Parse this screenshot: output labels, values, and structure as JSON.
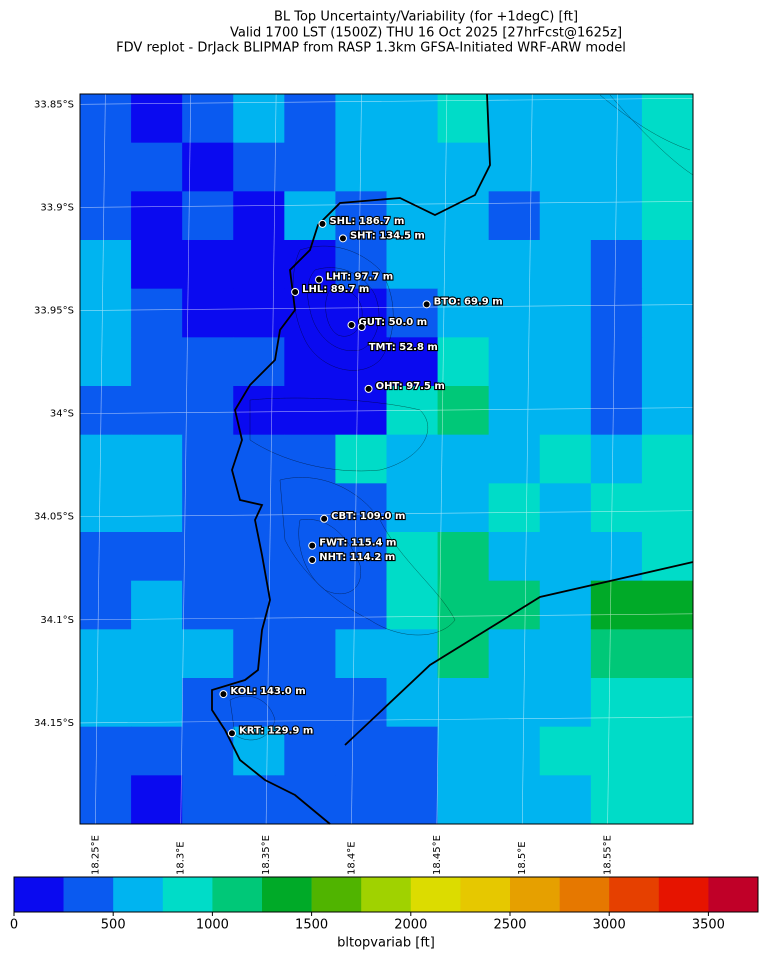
{
  "chart_data": {
    "type": "map",
    "title_lines": [
      "BL Top Uncertainty/Variability (for +1degC) [ft]",
      "Valid 1700 LST (1500Z) THU 16 Oct 2025 [27hrFcst@1625z]",
      "FDV replot - DrJack BLIPMAP from RASP 1.3km GFSA-Initiated WRF-ARW model"
    ],
    "xlim": [
      18.241,
      18.6
    ],
    "ylim": [
      -34.199,
      -33.845
    ],
    "xticks": [
      {
        "value": 18.25,
        "label": "18.25°E"
      },
      {
        "value": 18.3,
        "label": "18.3°E"
      },
      {
        "value": 18.35,
        "label": "18.35°E"
      },
      {
        "value": 18.4,
        "label": "18.4°E"
      },
      {
        "value": 18.45,
        "label": "18.45°E"
      },
      {
        "value": 18.5,
        "label": "18.5°E"
      },
      {
        "value": 18.55,
        "label": "18.55°E"
      }
    ],
    "yticks": [
      {
        "value": -33.85,
        "label": "33.85°S"
      },
      {
        "value": -33.9,
        "label": "33.9°S"
      },
      {
        "value": -33.95,
        "label": "33.95°S"
      },
      {
        "value": -34.0,
        "label": "34°S"
      },
      {
        "value": -34.05,
        "label": "34.05°S"
      },
      {
        "value": -34.1,
        "label": "34.1°S"
      },
      {
        "value": -34.15,
        "label": "34.15°S"
      }
    ],
    "grid_values": [
      [
        400,
        100,
        400,
        600,
        400,
        600,
        600,
        900,
        600,
        600,
        600,
        900
      ],
      [
        400,
        400,
        100,
        400,
        400,
        600,
        600,
        600,
        600,
        600,
        600,
        900
      ],
      [
        400,
        100,
        400,
        100,
        600,
        400,
        600,
        600,
        400,
        600,
        600,
        900
      ],
      [
        600,
        100,
        100,
        100,
        100,
        400,
        600,
        600,
        600,
        600,
        400,
        600
      ],
      [
        600,
        400,
        100,
        100,
        100,
        100,
        400,
        600,
        600,
        600,
        400,
        600
      ],
      [
        600,
        400,
        400,
        400,
        100,
        100,
        100,
        900,
        600,
        600,
        400,
        600
      ],
      [
        400,
        400,
        400,
        100,
        100,
        100,
        900,
        1100,
        600,
        600,
        400,
        600
      ],
      [
        600,
        600,
        400,
        400,
        400,
        900,
        600,
        600,
        600,
        900,
        600,
        900
      ],
      [
        600,
        600,
        400,
        400,
        400,
        400,
        600,
        600,
        900,
        600,
        900,
        900
      ],
      [
        400,
        400,
        400,
        400,
        400,
        400,
        900,
        1100,
        600,
        600,
        600,
        900
      ],
      [
        400,
        600,
        400,
        400,
        400,
        400,
        900,
        1100,
        1100,
        600,
        1300,
        1300
      ],
      [
        600,
        600,
        600,
        400,
        400,
        600,
        600,
        1100,
        600,
        600,
        1100,
        1100
      ],
      [
        600,
        600,
        400,
        400,
        400,
        400,
        600,
        600,
        600,
        600,
        900,
        900
      ],
      [
        400,
        400,
        400,
        600,
        400,
        400,
        400,
        600,
        600,
        900,
        900,
        900
      ],
      [
        400,
        100,
        400,
        400,
        400,
        400,
        400,
        600,
        600,
        600,
        900,
        900
      ]
    ],
    "stations": [
      {
        "label": "SHL: 186.7 m",
        "lon": 18.383,
        "lat": -33.908
      },
      {
        "label": "SHT: 134.5 m",
        "lon": 18.395,
        "lat": -33.915
      },
      {
        "label": "LHT: 97.7 m",
        "lon": 18.381,
        "lat": -33.935
      },
      {
        "label": "LHL: 89.7 m",
        "lon": 18.367,
        "lat": -33.941
      },
      {
        "label": "BTO: 69.9 m",
        "lon": 18.444,
        "lat": -33.947
      },
      {
        "label": "GUT: 50.0 m",
        "lon": 18.4,
        "lat": -33.957
      },
      {
        "label": "TMT: 52.8 m",
        "lon": 18.406,
        "lat": -33.958
      },
      {
        "label": "OHT: 97.5 m",
        "lon": 18.41,
        "lat": -33.988
      },
      {
        "label": "CBT: 109.0 m",
        "lon": 18.384,
        "lat": -34.051
      },
      {
        "label": "FWT: 115.4 m",
        "lon": 18.377,
        "lat": -34.064
      },
      {
        "label": "NHT: 114.2 m",
        "lon": 18.377,
        "lat": -34.071
      },
      {
        "label": "KOL: 143.0 m",
        "lon": 18.325,
        "lat": -34.136
      },
      {
        "label": "KRT: 129.9 m",
        "lon": 18.33,
        "lat": -34.155
      }
    ],
    "levels": [
      0,
      250,
      500,
      750,
      1000,
      1250,
      1500,
      1750,
      2000,
      2250,
      2500,
      2750,
      3000,
      3250,
      3500,
      3750
    ],
    "colors": [
      "#0a0af0",
      "#0a5af0",
      "#00b4f0",
      "#00dcc8",
      "#00c878",
      "#00aa28",
      "#50b400",
      "#a0d200",
      "#dcdc00",
      "#e6c800",
      "#e6a000",
      "#e67800",
      "#e64000",
      "#e61400",
      "#c00028"
    ],
    "colorbar_ticks": [
      0,
      500,
      1000,
      1500,
      2000,
      2500,
      3000,
      3500
    ],
    "colorbar_label": "bltopvariab [ft]"
  }
}
